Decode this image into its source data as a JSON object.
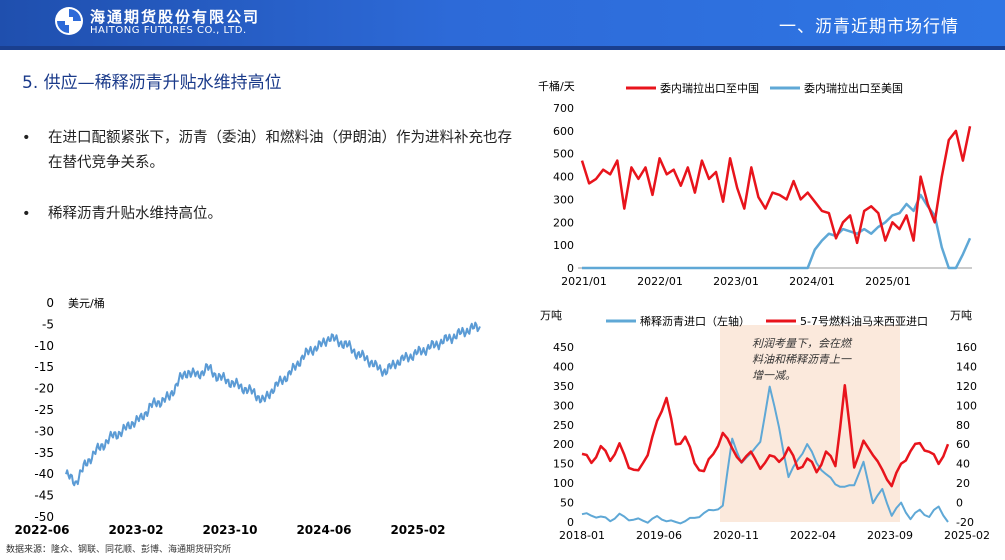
{
  "header": {
    "brand_cn": "海通期货股份有限公司",
    "brand_en": "HAITONG FUTURES CO., LTD.",
    "section_title": "一、沥青近期市场行情"
  },
  "slide_title": "5. 供应—稀释沥青升贴水维持高位",
  "bullets": [
    "在进口配额紧张下，沥青（委油）和燃料油（伊朗油）作为进料补充也存在替代竞争关系。",
    "稀释沥青升贴水维持高位。"
  ],
  "footer": "数据来源：隆众、钢联、同花顺、彭博、海通期货研究所",
  "colors": {
    "red": "#e8141c",
    "blue": "#5fa8d6",
    "bluelight": "#5b9bd5",
    "navy": "#1a3a8a",
    "header": "#2d6ad8"
  },
  "chart_data": [
    {
      "type": "line",
      "ylabel": "美元/桶",
      "ylim": [
        -50,
        0
      ],
      "yticks": [
        "0",
        "-5",
        "-10",
        "-15",
        "-20",
        "-25",
        "-30",
        "-35",
        "-40",
        "-45",
        "-50"
      ],
      "xticks": [
        "2022-06",
        "2023-02",
        "2023-10",
        "2024-06",
        "2025-02"
      ],
      "series": [
        {
          "name": "",
          "values": [
            -40,
            -42,
            -38,
            -35,
            -33,
            -31,
            -30,
            -28,
            -27,
            -24,
            -23,
            -22,
            -18,
            -16,
            -17,
            -15,
            -17,
            -18,
            -19,
            -20,
            -21,
            -23,
            -20,
            -18,
            -16,
            -13,
            -11,
            -10,
            -8,
            -9,
            -10,
            -12,
            -13,
            -15,
            -16,
            -14,
            -13,
            -12,
            -11,
            -10,
            -9,
            -8,
            -7,
            -6,
            -5.5
          ]
        }
      ]
    },
    {
      "type": "line",
      "ylabel": "千桶/天",
      "ylim": [
        0,
        700
      ],
      "yticks": [
        "700",
        "600",
        "500",
        "400",
        "300",
        "200",
        "100",
        "0"
      ],
      "xticks": [
        "2021/01",
        "2022/01",
        "2023/01",
        "2024/01",
        "2025/01"
      ],
      "series": [
        {
          "name": "委内瑞拉出口至中国",
          "values": [
            470,
            370,
            390,
            430,
            410,
            470,
            260,
            440,
            390,
            440,
            320,
            480,
            410,
            430,
            360,
            440,
            330,
            470,
            390,
            420,
            290,
            480,
            350,
            260,
            440,
            310,
            260,
            330,
            320,
            300,
            380,
            300,
            330,
            290,
            250,
            240,
            130,
            200,
            230,
            110,
            250,
            270,
            240,
            120,
            200,
            170,
            230,
            120,
            400,
            280,
            200,
            400,
            560,
            600,
            470,
            620
          ]
        },
        {
          "name": "委内瑞拉出口至美国",
          "values": [
            0,
            0,
            0,
            0,
            0,
            0,
            0,
            0,
            0,
            0,
            0,
            0,
            0,
            0,
            0,
            0,
            0,
            0,
            0,
            0,
            0,
            0,
            0,
            0,
            0,
            0,
            0,
            0,
            0,
            0,
            0,
            0,
            0,
            80,
            120,
            150,
            140,
            170,
            160,
            150,
            170,
            150,
            180,
            200,
            230,
            240,
            280,
            250,
            320,
            270,
            230,
            90,
            0,
            0,
            60,
            130
          ]
        }
      ]
    },
    {
      "type": "line",
      "ylabel_left": "万吨",
      "ylabel_right": "万吨",
      "ylim_left": [
        0,
        450
      ],
      "ylim_right": [
        -20,
        160
      ],
      "yticks_left": [
        "450",
        "400",
        "350",
        "300",
        "250",
        "200",
        "150",
        "100",
        "50",
        "0"
      ],
      "yticks_right": [
        "160",
        "140",
        "120",
        "100",
        "80",
        "60",
        "40",
        "20",
        "0",
        "-20"
      ],
      "xticks": [
        "2018-01",
        "2019-06",
        "2020-11",
        "2022-04",
        "2023-09",
        "2025-02"
      ],
      "annotation": "利润考量下，会在燃料油和稀释沥青上一增一减。",
      "series": [
        {
          "name": "稀释沥青进口（左轴）",
          "values": [
            20,
            15,
            10,
            5,
            20,
            10,
            5,
            0,
            10,
            5,
            0,
            5,
            10,
            20,
            30,
            40,
            220,
            150,
            180,
            200,
            350,
            240,
            120,
            160,
            200,
            150,
            120,
            100,
            90,
            100,
            150,
            50,
            80,
            20,
            50,
            10,
            30,
            10,
            40,
            0
          ]
        },
        {
          "name": "5-7号燃料油马来西亚进口",
          "values": [
            50,
            40,
            55,
            45,
            60,
            40,
            30,
            50,
            80,
            110,
            60,
            70,
            40,
            30,
            50,
            70,
            60,
            40,
            55,
            30,
            50,
            40,
            60,
            35,
            45,
            30,
            50,
            40,
            120,
            40,
            60,
            50,
            30,
            20,
            40,
            55,
            60,
            50,
            40,
            60
          ]
        }
      ]
    }
  ]
}
